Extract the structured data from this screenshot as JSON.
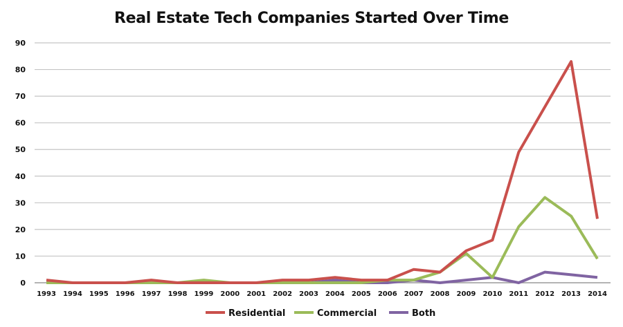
{
  "chart_data": {
    "type": "line",
    "title": "Real Estate Tech Companies Started Over Time",
    "xlabel": "",
    "ylabel": "",
    "categories": [
      "1993",
      "1994",
      "1995",
      "1996",
      "1997",
      "1998",
      "1999",
      "2000",
      "2001",
      "2002",
      "2003",
      "2004",
      "2005",
      "2006",
      "2007",
      "2008",
      "2009",
      "2010",
      "2011",
      "2012",
      "2013",
      "2014"
    ],
    "yticks": [
      "0",
      "10",
      "20",
      "30",
      "40",
      "50",
      "60",
      "70",
      "80",
      "90"
    ],
    "ylim": [
      0,
      90
    ],
    "grid": true,
    "legend": "bottom",
    "series": [
      {
        "name": "Residential",
        "color": "#c9504c",
        "values": [
          1,
          0,
          0,
          0,
          1,
          0,
          0,
          0,
          0,
          1,
          1,
          2,
          1,
          1,
          5,
          4,
          12,
          16,
          49,
          66,
          83,
          24
        ]
      },
      {
        "name": "Commercial",
        "color": "#9bbb59",
        "values": [
          0,
          0,
          0,
          0,
          0,
          0,
          1,
          0,
          0,
          0,
          0,
          0,
          0,
          1,
          1,
          4,
          11,
          2,
          21,
          32,
          25,
          9
        ]
      },
      {
        "name": "Both",
        "color": "#8064a2",
        "values": [
          0,
          0,
          0,
          0,
          0,
          0,
          0,
          0,
          0,
          0,
          0,
          1,
          0,
          0,
          1,
          0,
          1,
          2,
          0,
          4,
          3,
          2
        ]
      }
    ]
  }
}
